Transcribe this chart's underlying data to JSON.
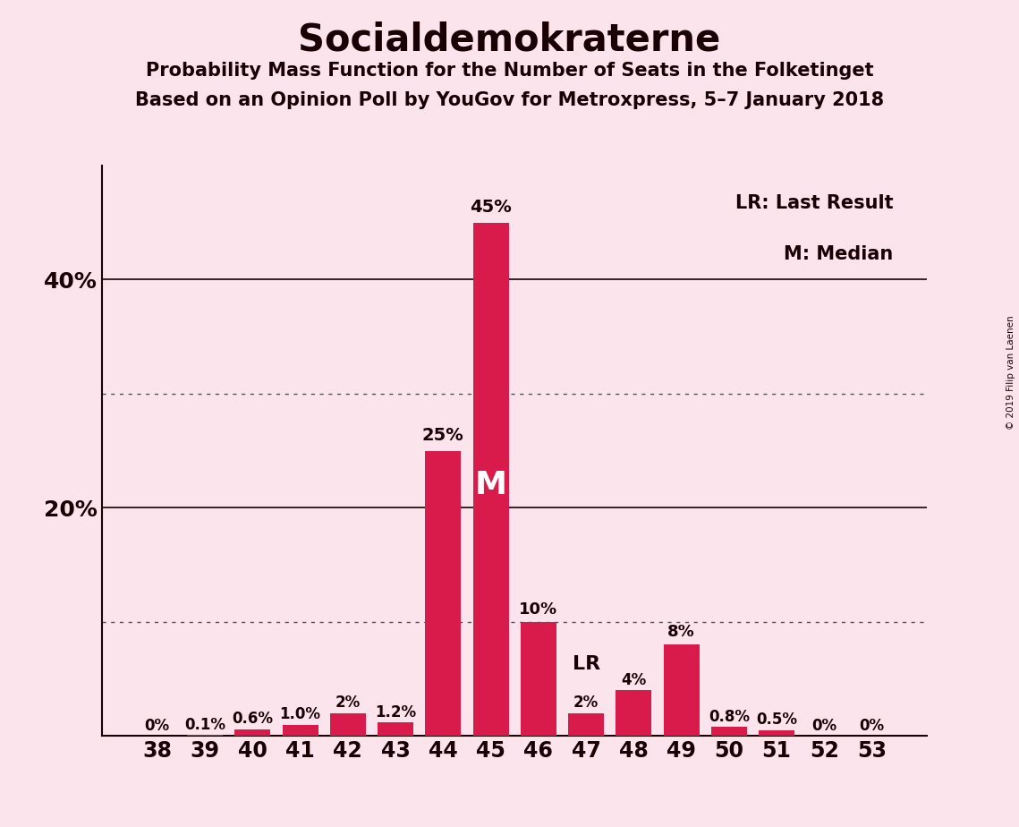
{
  "title": "Socialdemokraterne",
  "subtitle1": "Probability Mass Function for the Number of Seats in the Folketinget",
  "subtitle2": "Based on an Opinion Poll by YouGov for Metroxpress, 5–7 January 2018",
  "copyright": "© 2019 Filip van Laenen",
  "categories": [
    38,
    39,
    40,
    41,
    42,
    43,
    44,
    45,
    46,
    47,
    48,
    49,
    50,
    51,
    52,
    53
  ],
  "values": [
    0.0,
    0.1,
    0.6,
    1.0,
    2.0,
    1.2,
    25.0,
    45.0,
    10.0,
    2.0,
    4.0,
    8.0,
    0.8,
    0.5,
    0.0,
    0.0
  ],
  "labels": [
    "0%",
    "0.1%",
    "0.6%",
    "1.0%",
    "2%",
    "1.2%",
    "25%",
    "45%",
    "10%",
    "2%",
    "4%",
    "8%",
    "0.8%",
    "0.5%",
    "0%",
    "0%"
  ],
  "bar_color": "#d81b4a",
  "background_color": "#fce4ec",
  "text_color": "#1a0005",
  "median_seat": 45,
  "last_result_seat": 47,
  "legend_lr": "LR: Last Result",
  "legend_m": "M: Median",
  "dotted_lines": [
    10,
    30
  ],
  "solid_lines": [
    20,
    40
  ],
  "ylim": [
    0,
    50
  ],
  "ytick_positions": [
    20,
    40
  ],
  "ytick_labels": [
    "20%",
    "40%"
  ]
}
